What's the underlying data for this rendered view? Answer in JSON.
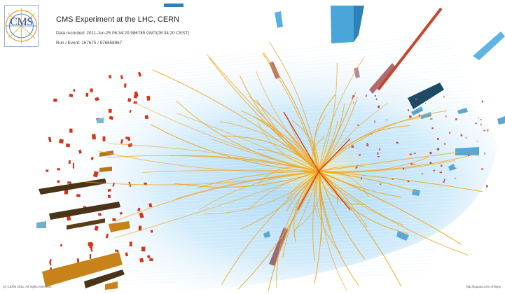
{
  "logo": {
    "text": "CMS",
    "icon": "cms-logo-icon"
  },
  "header": {
    "title": "CMS Experiment at the LHC, CERN",
    "data_recorded": "Data recorded: 2011-Jun-25 06:34:20.986785 GMT(08:34:20 CEST)",
    "run_event": "Run / Event: 167675 / 876658967"
  },
  "footer": {
    "copyright": "(c) CERN 2011. All rights reserved.",
    "website": "http://iguana.cern.ch/ispy"
  },
  "colors": {
    "track": "#f2a51c",
    "muon": "#d83a1c",
    "detector_glow": "#cfe8f8",
    "hcal": "#5aa6d4",
    "ecal_hit": "#d43318",
    "jet_bar": "#c8821a",
    "dark_bar": "#4a3418"
  }
}
